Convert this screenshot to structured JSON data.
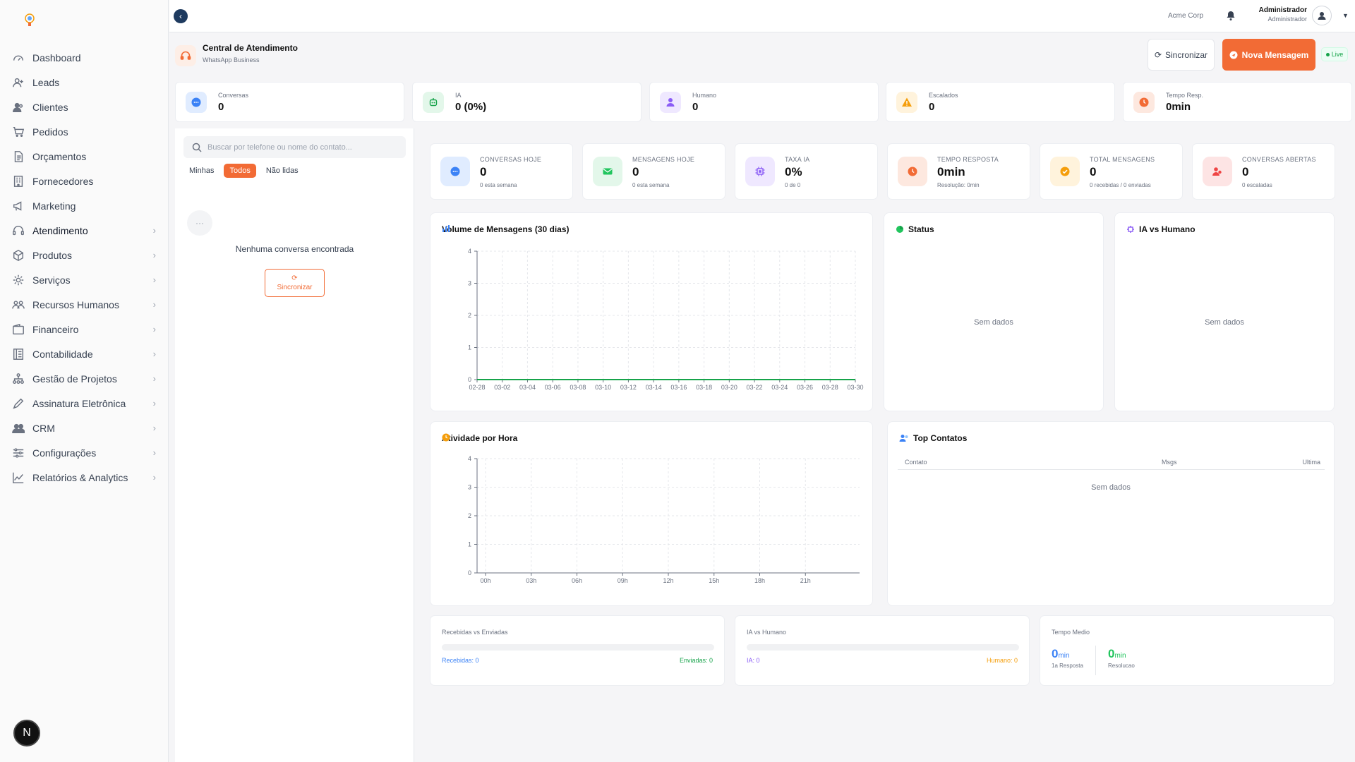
{
  "topbar": {
    "company": "Acme Corp",
    "user_name": "Administrador",
    "user_role": "Administrador"
  },
  "sidebar": {
    "items": [
      {
        "label": "Dashboard",
        "icon": "dashboard-icon",
        "chevron": false
      },
      {
        "label": "Leads",
        "icon": "user-plus-icon",
        "chevron": false
      },
      {
        "label": "Clientes",
        "icon": "users-icon",
        "chevron": false
      },
      {
        "label": "Pedidos",
        "icon": "cart-icon",
        "chevron": false
      },
      {
        "label": "Orçamentos",
        "icon": "document-icon",
        "chevron": false
      },
      {
        "label": "Fornecedores",
        "icon": "building-icon",
        "chevron": false
      },
      {
        "label": "Marketing",
        "icon": "megaphone-icon",
        "chevron": false
      },
      {
        "label": "Atendimento",
        "icon": "headset-icon",
        "chevron": true,
        "active": true
      },
      {
        "label": "Produtos",
        "icon": "box-icon",
        "chevron": true
      },
      {
        "label": "Serviços",
        "icon": "gear-icon",
        "chevron": true
      },
      {
        "label": "Recursos Humanos",
        "icon": "people-icon",
        "chevron": true
      },
      {
        "label": "Financeiro",
        "icon": "wallet-icon",
        "chevron": true
      },
      {
        "label": "Contabilidade",
        "icon": "ledger-icon",
        "chevron": true
      },
      {
        "label": "Gestão de Projetos",
        "icon": "hierarchy-icon",
        "chevron": true
      },
      {
        "label": "Assinatura Eletrônica",
        "icon": "pen-icon",
        "chevron": true
      },
      {
        "label": "CRM",
        "icon": "users-group-icon",
        "chevron": true
      },
      {
        "label": "Configurações",
        "icon": "sliders-icon",
        "chevron": true
      },
      {
        "label": "Relatórios & Analytics",
        "icon": "line-chart-icon",
        "chevron": true
      }
    ],
    "badge": "N"
  },
  "header": {
    "title": "Central de Atendimento",
    "subtitle": "WhatsApp Business",
    "sync_label": "Sincronizar",
    "new_label": "Nova Mensagem",
    "live_label": "Live"
  },
  "stats": [
    {
      "label": "Conversas",
      "value": "0",
      "color": "#3b82f6",
      "bg": "#e0ecff",
      "icon": "chat-icon"
    },
    {
      "label": "IA",
      "value": "0 (0%)",
      "color": "#16a34a",
      "bg": "#e3f7ea",
      "icon": "robot-icon"
    },
    {
      "label": "Humano",
      "value": "0",
      "color": "#8b5cf6",
      "bg": "#efe8ff",
      "icon": "person-icon"
    },
    {
      "label": "Escalados",
      "value": "0",
      "color": "#f59e0b",
      "bg": "#fff3dc",
      "icon": "warning-icon"
    },
    {
      "label": "Tempo Resp.",
      "value": "0min",
      "color": "#f26b35",
      "bg": "#fde8df",
      "icon": "clock-icon"
    }
  ],
  "conversations": {
    "search_placeholder": "Buscar por telefone ou nome do contato...",
    "filters": [
      "Minhas",
      "Todos",
      "Não lidas"
    ],
    "active_filter": 1,
    "empty_text": "Nenhuma conversa encontrada",
    "sync_label": "Sincronizar"
  },
  "kpis": [
    {
      "label": "CONVERSAS HOJE",
      "value": "0",
      "sub": "0 esta semana",
      "color": "#3b82f6",
      "bg": "#e0ecff",
      "icon": "chat-icon"
    },
    {
      "label": "MENSAGENS HOJE",
      "value": "0",
      "sub": "0 esta semana",
      "color": "#22c55e",
      "bg": "#e3f7ea",
      "icon": "mail-icon"
    },
    {
      "label": "TAXA IA",
      "value": "0%",
      "sub": "0 de 0",
      "color": "#8b5cf6",
      "bg": "#efe8ff",
      "icon": "chip-icon"
    },
    {
      "label": "TEMPO RESPOSTA",
      "value": "0min",
      "sub": "Resolução: 0min",
      "color": "#f26b35",
      "bg": "#fde8df",
      "icon": "clock-icon"
    },
    {
      "label": "TOTAL MENSAGENS",
      "value": "0",
      "sub": "0 recebidas / 0 enviadas",
      "color": "#f59e0b",
      "bg": "#fff3dc",
      "icon": "check-chat-icon"
    },
    {
      "label": "CONVERSAS ABERTAS",
      "value": "0",
      "sub": "0 escaladas",
      "color": "#ef4444",
      "bg": "#fde4e4",
      "icon": "users-icon"
    }
  ],
  "cards": {
    "volume_title": "Volume de Mensagens (30 dias)",
    "status_title": "Status",
    "status_empty": "Sem dados",
    "ia_title": "IA vs Humano",
    "ia_empty": "Sem dados",
    "hour_title": "Atividade por Hora",
    "top_title": "Top Contatos",
    "top_cols": [
      "Contato",
      "Msgs",
      "Ultima"
    ],
    "top_empty": "Sem dados"
  },
  "bottom": {
    "rv_label": "Recebidas vs Enviadas",
    "rv_left": "Recebidas: 0",
    "rv_right": "Enviadas: 0",
    "ia_label": "IA vs Humano",
    "ia_left": "IA: 0",
    "ia_right": "Humano: 0",
    "tm_label": "Tempo Medio",
    "tm1_val": "0",
    "tm1_unit": "min",
    "tm1_sub": "1a Resposta",
    "tm2_val": "0",
    "tm2_unit": "min",
    "tm2_sub": "Resolucao"
  },
  "chart_data": [
    {
      "type": "line",
      "title": "Volume de Mensagens (30 dias)",
      "categories": [
        "02-28",
        "03-02",
        "03-04",
        "03-06",
        "03-08",
        "03-10",
        "03-12",
        "03-14",
        "03-16",
        "03-18",
        "03-20",
        "03-22",
        "03-24",
        "03-26",
        "03-28",
        "03-30"
      ],
      "series": [
        {
          "values": [
            0,
            0,
            0,
            0,
            0,
            0,
            0,
            0,
            0,
            0,
            0,
            0,
            0,
            0,
            0,
            0
          ],
          "color": "#16a34a"
        }
      ],
      "ylim": [
        0,
        4
      ],
      "yticks": [
        0,
        1,
        2,
        3,
        4
      ],
      "grid": true
    },
    {
      "type": "bar",
      "title": "Atividade por Hora",
      "categories": [
        "00h",
        "03h",
        "06h",
        "09h",
        "12h",
        "15h",
        "18h",
        "21h"
      ],
      "series": [
        {
          "values": [
            0,
            0,
            0,
            0,
            0,
            0,
            0,
            0
          ]
        }
      ],
      "ylim": [
        0,
        4
      ],
      "yticks": [
        0,
        1,
        2,
        3,
        4
      ],
      "grid": true
    }
  ]
}
